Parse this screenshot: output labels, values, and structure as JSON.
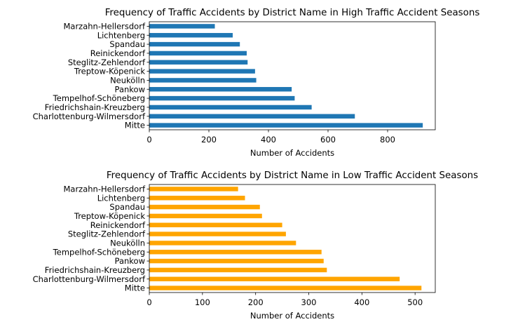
{
  "chart_data": [
    {
      "type": "bar",
      "orientation": "horizontal",
      "title": "Frequency of Traffic Accidents by District Name in High Traffic Accident Seasons",
      "xlabel": "Number of Accidents",
      "ylabel": "",
      "color": "#1f77b4",
      "xlim": [
        0,
        960
      ],
      "xticks": [
        0,
        200,
        400,
        600,
        800
      ],
      "grid": false,
      "categories": [
        "Mitte",
        "Charlottenburg-Wilmersdorf",
        "Friedrichshain-Kreuzberg",
        "Tempelhof-Schöneberg",
        "Pankow",
        "Neukölln",
        "Treptow-Köpenick",
        "Steglitz-Zehlendorf",
        "Reinickendorf",
        "Spandau",
        "Lichtenberg",
        "Marzahn-Hellersdorf"
      ],
      "values": [
        918,
        690,
        545,
        488,
        478,
        359,
        355,
        330,
        327,
        304,
        280,
        220
      ]
    },
    {
      "type": "bar",
      "orientation": "horizontal",
      "title": "Frequency of Traffic Accidents by District Name in Low Traffic Accident Seasons",
      "xlabel": "Number of Accidents",
      "ylabel": "",
      "color": "#ffa500",
      "xlim": [
        0,
        538
      ],
      "xticks": [
        0,
        100,
        200,
        300,
        400,
        500
      ],
      "grid": false,
      "categories": [
        "Mitte",
        "Charlottenburg-Wilmersdorf",
        "Friedrichshain-Kreuzberg",
        "Pankow",
        "Tempelhof-Schöneberg",
        "Neukölln",
        "Steglitz-Zehlendorf",
        "Reinickendorf",
        "Treptow-Köpenick",
        "Spandau",
        "Lichtenberg",
        "Marzahn-Hellersdorf"
      ],
      "values": [
        512,
        471,
        334,
        328,
        324,
        276,
        257,
        250,
        212,
        208,
        180,
        167
      ]
    }
  ]
}
